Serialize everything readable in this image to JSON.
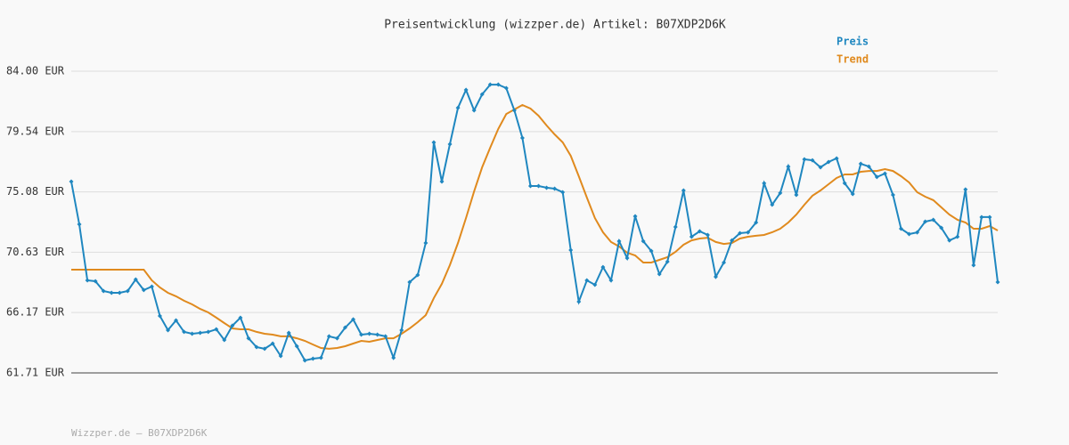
{
  "chart_data": {
    "type": "line",
    "title": "Preisentwicklung (wizzper.de) Artikel: B07XDP2D6K",
    "footer": "Wizzper.de – B07XDP2D6K",
    "ylim": [
      61.71,
      84.0
    ],
    "yticks": [
      {
        "value": 61.71,
        "label": "61.71 EUR"
      },
      {
        "value": 66.17,
        "label": "66.17 EUR"
      },
      {
        "value": 70.63,
        "label": "70.63 EUR"
      },
      {
        "value": 75.08,
        "label": "75.08 EUR"
      },
      {
        "value": 79.54,
        "label": "79.54 EUR"
      },
      {
        "value": 84.0,
        "label": "84.00 EUR"
      }
    ],
    "grid": true,
    "series": [
      {
        "name": "Preis",
        "color": "#1f87c0",
        "markers": true,
        "values": [
          75.85,
          72.69,
          68.55,
          68.48,
          67.76,
          67.63,
          67.63,
          67.76,
          68.61,
          67.83,
          68.09,
          65.92,
          64.87,
          65.59,
          64.74,
          64.6,
          64.67,
          64.74,
          64.93,
          64.14,
          65.2,
          65.79,
          64.27,
          63.62,
          63.49,
          63.88,
          62.96,
          64.67,
          63.68,
          62.63,
          62.76,
          62.83,
          64.41,
          64.27,
          65.06,
          65.66,
          64.54,
          64.6,
          64.54,
          64.41,
          62.83,
          64.87,
          68.42,
          68.94,
          71.31,
          78.74,
          75.85,
          78.61,
          81.3,
          82.62,
          81.11,
          82.29,
          83.01,
          83.01,
          82.75,
          81.11,
          79.07,
          75.52,
          75.52,
          75.39,
          75.32,
          75.06,
          70.78,
          66.97,
          68.55,
          68.22,
          69.53,
          68.55,
          71.44,
          70.19,
          73.28,
          71.44,
          70.72,
          69.01,
          69.93,
          72.49,
          75.19,
          71.77,
          72.17,
          71.9,
          68.81,
          69.86,
          71.5,
          72.03,
          72.09,
          72.82,
          75.72,
          74.14,
          75.0,
          76.96,
          74.86,
          77.49,
          77.42,
          76.9,
          77.29,
          77.56,
          75.72,
          74.93,
          77.16,
          76.96,
          76.18,
          76.44,
          74.86,
          72.36,
          71.97,
          72.09,
          72.89,
          73.02,
          72.43,
          71.5,
          71.77,
          75.26,
          69.67,
          73.22,
          73.22,
          68.42
        ]
      },
      {
        "name": "Trend",
        "color": "#e08a1e",
        "markers": false,
        "values": [
          69.34,
          69.34,
          69.34,
          69.34,
          69.34,
          69.34,
          69.34,
          69.34,
          69.34,
          69.34,
          68.55,
          68.02,
          67.63,
          67.37,
          67.04,
          66.77,
          66.44,
          66.18,
          65.79,
          65.39,
          65.0,
          64.93,
          64.93,
          64.74,
          64.6,
          64.54,
          64.41,
          64.41,
          64.27,
          64.08,
          63.81,
          63.55,
          63.49,
          63.55,
          63.68,
          63.88,
          64.08,
          64.01,
          64.14,
          64.27,
          64.27,
          64.6,
          65.0,
          65.46,
          65.98,
          67.24,
          68.29,
          69.67,
          71.31,
          73.15,
          75.12,
          76.9,
          78.35,
          79.73,
          80.84,
          81.17,
          81.5,
          81.24,
          80.71,
          79.99,
          79.33,
          78.74,
          77.75,
          76.24,
          74.66,
          73.15,
          72.1,
          71.38,
          71.05,
          70.59,
          70.39,
          69.86,
          69.86,
          70.06,
          70.26,
          70.65,
          71.18,
          71.5,
          71.64,
          71.7,
          71.38,
          71.24,
          71.31,
          71.64,
          71.77,
          71.84,
          71.9,
          72.1,
          72.36,
          72.82,
          73.41,
          74.14,
          74.8,
          75.19,
          75.65,
          76.11,
          76.37,
          76.37,
          76.57,
          76.63,
          76.63,
          76.77,
          76.63,
          76.24,
          75.78,
          75.06,
          74.73,
          74.47,
          73.94,
          73.41,
          73.02,
          72.82,
          72.36,
          72.36,
          72.56,
          72.23
        ]
      }
    ]
  }
}
